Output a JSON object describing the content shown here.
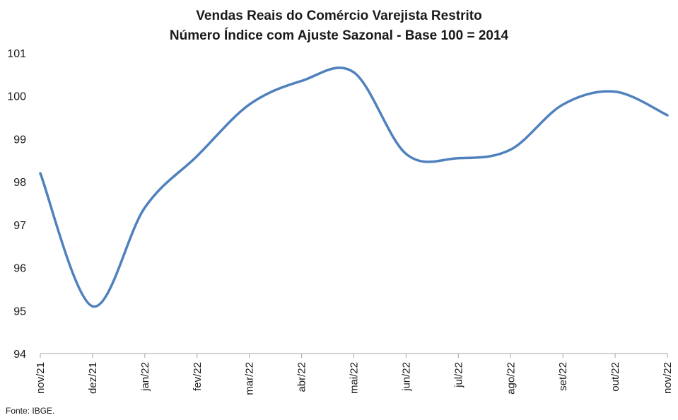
{
  "chart_data": {
    "type": "line",
    "title": "Vendas Reais do Comércio Varejista Restrito",
    "subtitle": "Número Índice com Ajuste Sazonal - Base 100 = 2014",
    "xlabel": "",
    "ylabel": "",
    "categories": [
      "nov/21",
      "dez/21",
      "jan/22",
      "fev/22",
      "mar/22",
      "abr/22",
      "mai/22",
      "jun/22",
      "jul/22",
      "ago/22",
      "set/22",
      "out/22",
      "nov/22"
    ],
    "series": [
      {
        "values": [
          98.2,
          95.1,
          97.4,
          98.6,
          99.8,
          100.35,
          100.55,
          98.65,
          98.55,
          98.75,
          99.8,
          100.1,
          99.55
        ]
      }
    ],
    "ylim": [
      94,
      101
    ],
    "yticks": [
      94,
      95,
      96,
      97,
      98,
      99,
      100,
      101
    ],
    "grid": false,
    "legend": "none",
    "line_color": "#4F81BD"
  },
  "source": "Fonte: IBGE."
}
